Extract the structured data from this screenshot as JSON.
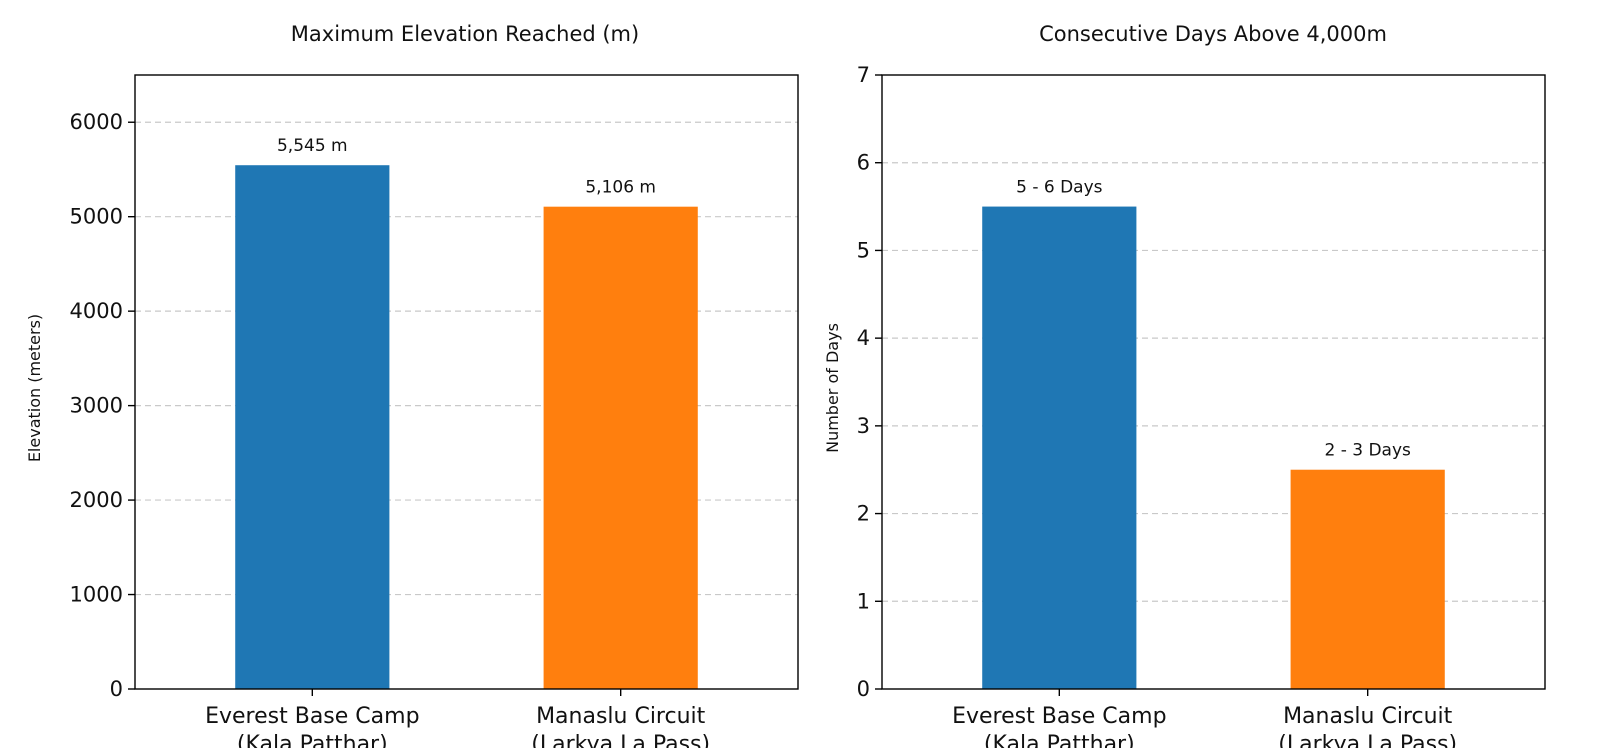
{
  "chart_data": [
    {
      "type": "bar",
      "title": "Maximum Elevation Reached (m)",
      "xlabel": "",
      "ylabel": "Elevation (meters)",
      "categories": [
        "Everest Base Camp",
        "Manaslu Circuit"
      ],
      "category_sublabels": [
        "(Kala Patthar)",
        "(Larkya La Pass)"
      ],
      "values": [
        5545,
        5106
      ],
      "value_labels": [
        "5,545 m",
        "5,106 m"
      ],
      "colors": [
        "#1f77b4",
        "#ff7f0e"
      ],
      "ylim": [
        0,
        6500
      ],
      "yticks": [
        0,
        1000,
        2000,
        3000,
        4000,
        5000,
        6000
      ],
      "grid": true
    },
    {
      "type": "bar",
      "title": "Consecutive Days Above 4,000m",
      "xlabel": "",
      "ylabel": "Number of Days",
      "categories": [
        "Everest Base Camp",
        "Manaslu Circuit"
      ],
      "category_sublabels": [
        "(Kala Patthar)",
        "(Larkya La Pass)"
      ],
      "values": [
        5.5,
        2.5
      ],
      "value_labels": [
        "5 - 6 Days",
        "2 - 3 Days"
      ],
      "colors": [
        "#1f77b4",
        "#ff7f0e"
      ],
      "ylim": [
        0,
        7
      ],
      "yticks": [
        0,
        1,
        2,
        3,
        4,
        5,
        6,
        7
      ],
      "grid": true
    }
  ]
}
